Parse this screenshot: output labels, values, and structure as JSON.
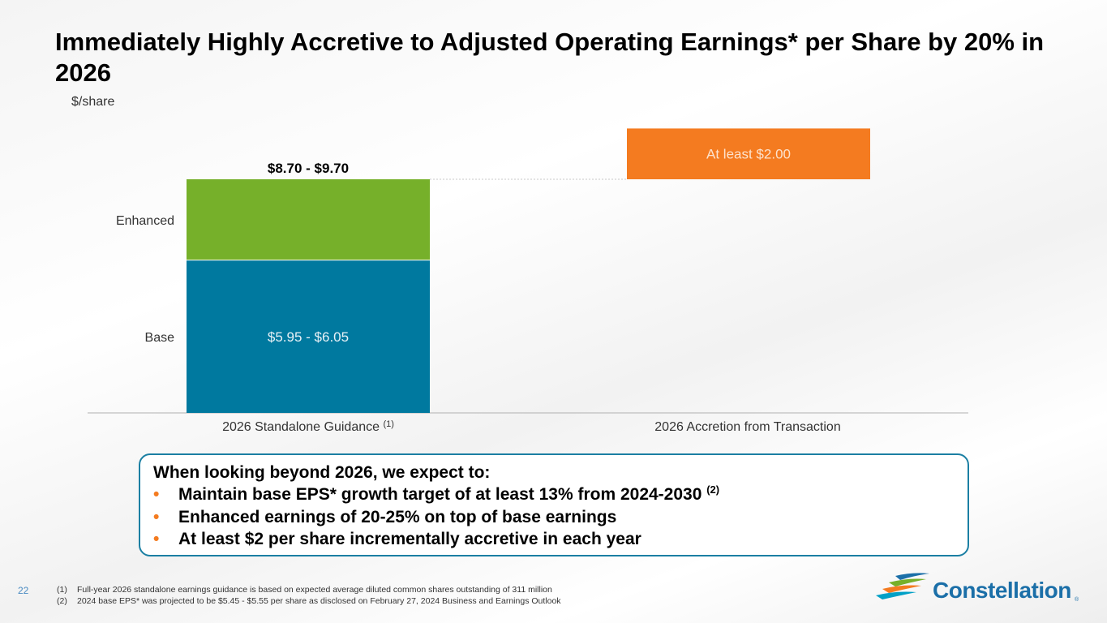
{
  "title": "Immediately Highly Accretive to Adjusted Operating Earnings* per Share by 20% in 2026",
  "unit_label": "$/share",
  "chart_data": {
    "type": "bar",
    "stacked": true,
    "waterfall": true,
    "categories": [
      "2026 Standalone Guidance",
      "2026 Accretion from Transaction"
    ],
    "category_superscripts": [
      "(1)",
      ""
    ],
    "ylim": [
      0,
      11.5
    ],
    "series": [
      {
        "name": "Base",
        "label": "Base",
        "color": "#00799f",
        "values": [
          6.0,
          0
        ],
        "data_label": "$5.95 - $6.05"
      },
      {
        "name": "Enhanced",
        "label": "Enhanced",
        "color": "#76b02a",
        "values": [
          3.2,
          0
        ],
        "data_label": ""
      },
      {
        "name": "Accretion",
        "label": "",
        "color": "#f47b20",
        "values": [
          0,
          2.0
        ],
        "start": [
          0,
          9.2
        ],
        "data_label": "At least $2.00"
      }
    ],
    "total_labels": [
      "$8.70 - $9.70",
      ""
    ],
    "grid": false
  },
  "callout": {
    "heading": "When looking beyond 2026, we expect to:",
    "bullet_glyph": "•",
    "bullets": [
      {
        "text": "Maintain base EPS* growth target of at least 13% from 2024-2030 ",
        "sup": "(2)"
      },
      {
        "text": "Enhanced earnings of 20-25% on top of base earnings",
        "sup": ""
      },
      {
        "text": "At least $2 per share incrementally accretive in each year",
        "sup": ""
      }
    ]
  },
  "footer": {
    "page_number": "22",
    "footnotes": [
      {
        "num": "(1)",
        "text": "Full-year 2026 standalone earnings guidance is based on expected average diluted common shares outstanding of 311 million"
      },
      {
        "num": "(2)",
        "text": "2024 base EPS* was projected to be $5.45 - $5.55 per share as disclosed on February 27, 2024 Business and Earnings Outlook"
      }
    ],
    "logo_text": "Constellation",
    "logo_reg": "®"
  },
  "colors": {
    "base": "#00799f",
    "enhanced": "#76b02a",
    "accretion": "#f47b20",
    "callout_border": "#1b7fa3",
    "logo": "#1b6fa8"
  }
}
